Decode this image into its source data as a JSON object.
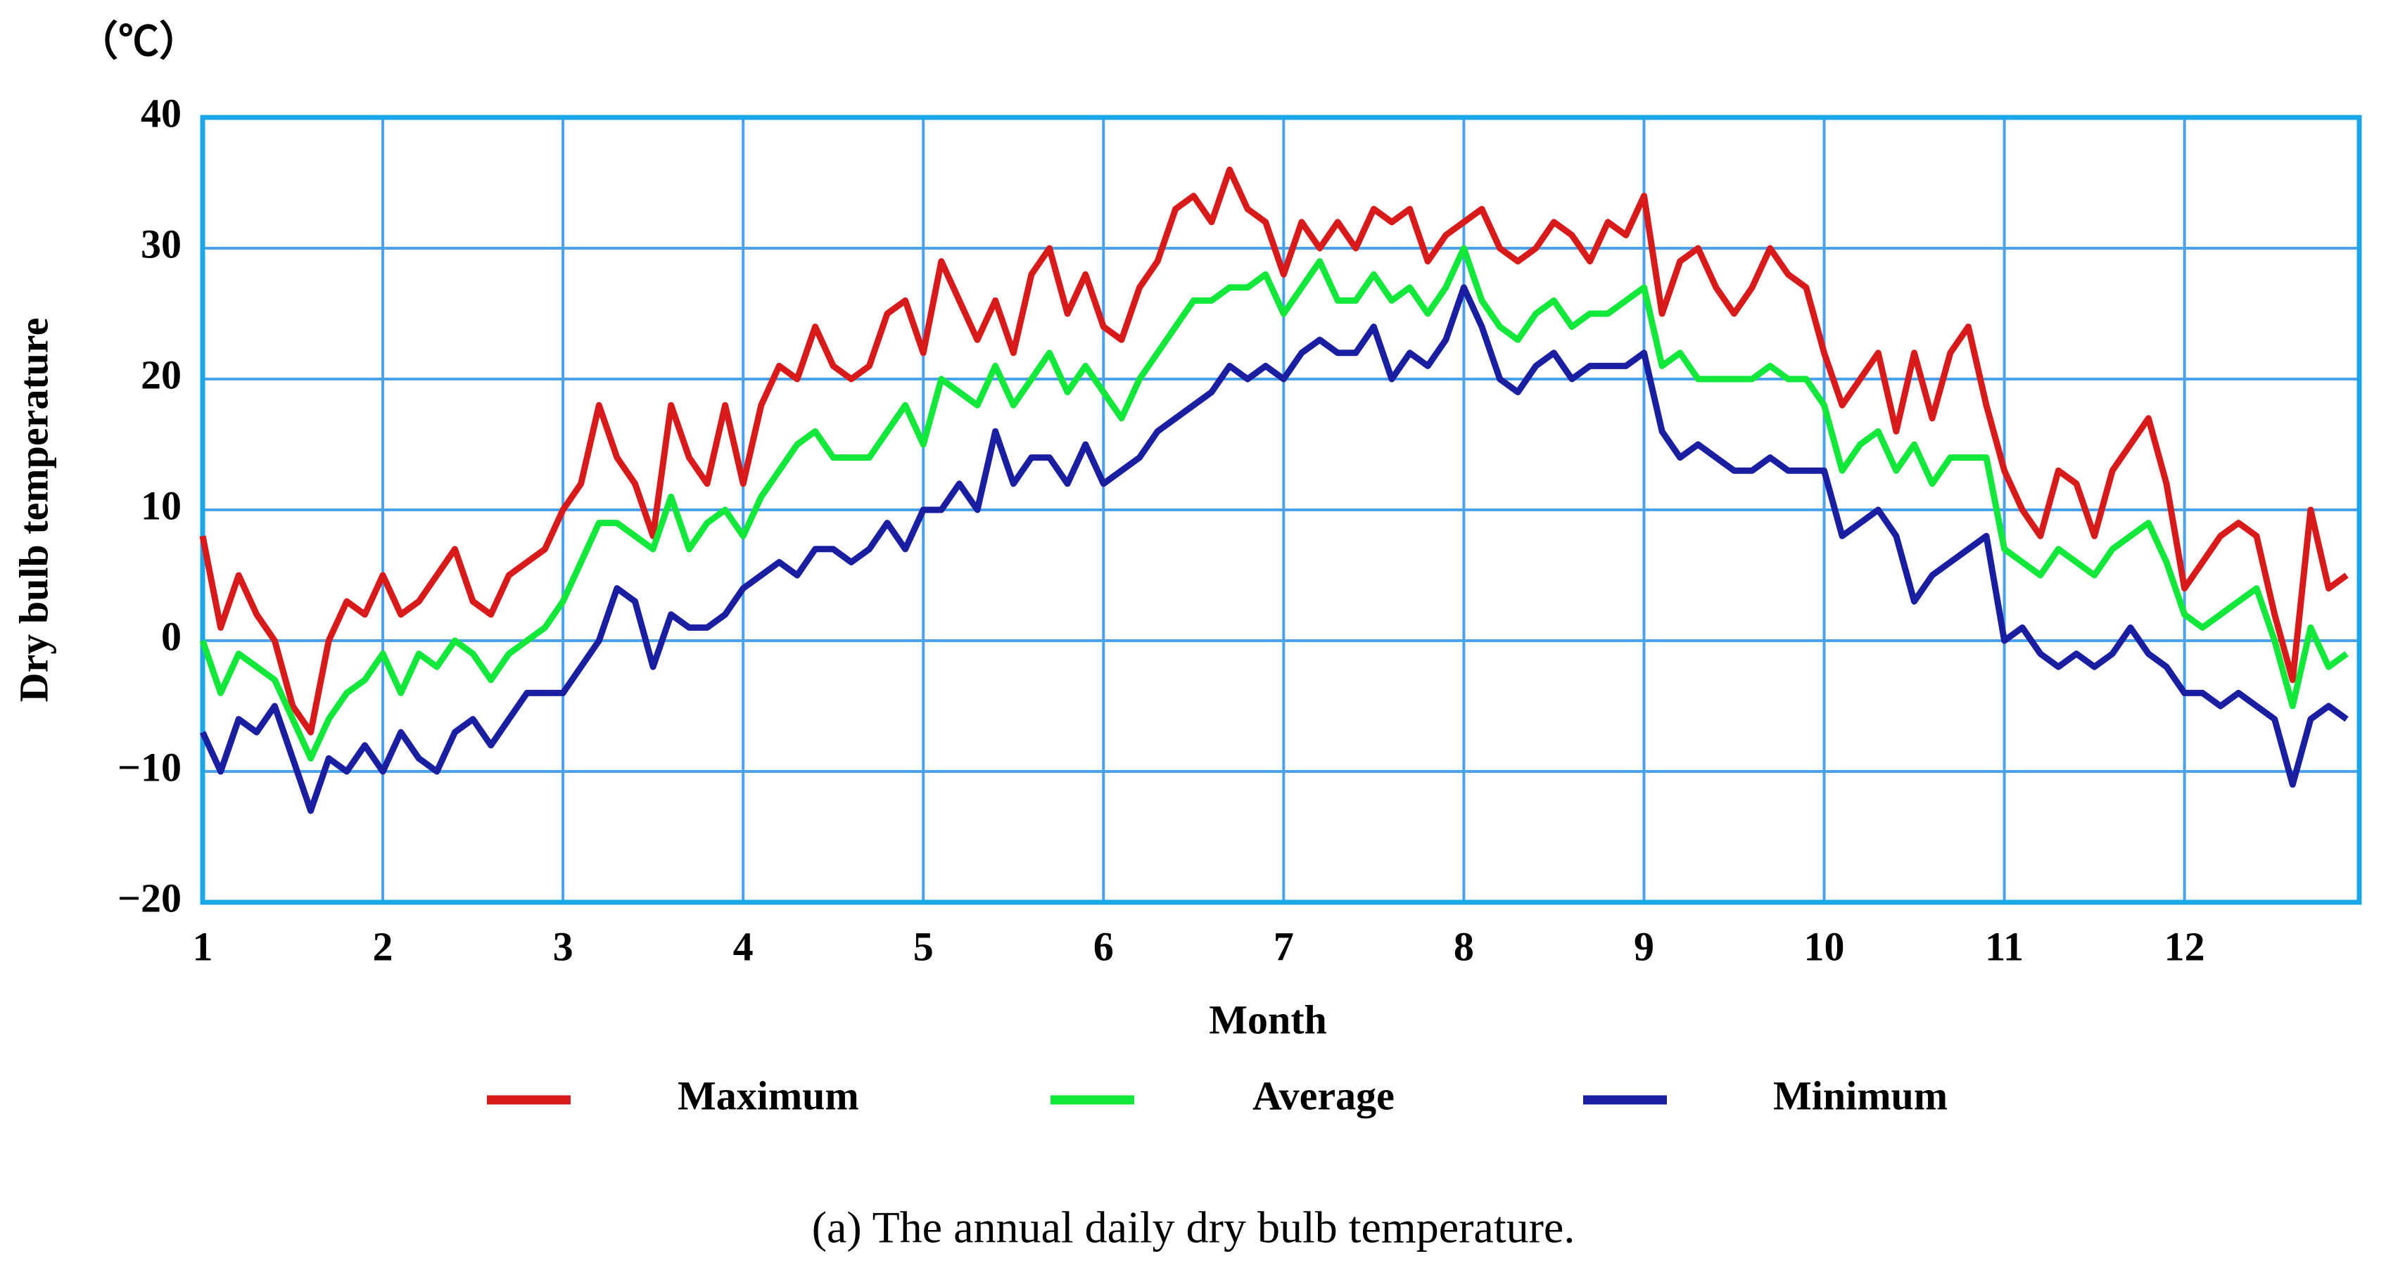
{
  "chart_data": {
    "type": "line",
    "unit_label": "（℃）",
    "y_label": "Dry bulb temperature",
    "x_label": "Month",
    "caption": "(a) The annual daily dry bulb temperature.",
    "xlim": [
      1,
      12.97
    ],
    "xticks": [
      1,
      2,
      3,
      4,
      5,
      6,
      7,
      8,
      9,
      10,
      11,
      12
    ],
    "ylim": [
      -20,
      40
    ],
    "yticks": [
      {
        "value": -20,
        "label": "−20"
      },
      {
        "value": -10,
        "label": "−10"
      },
      0,
      10,
      20,
      30,
      40
    ],
    "grid": true,
    "legend": "bottom",
    "x": [
      1.0,
      1.1,
      1.2,
      1.3,
      1.4,
      1.5,
      1.6,
      1.7,
      1.8,
      1.9,
      2.0,
      2.1,
      2.2,
      2.3,
      2.4,
      2.5,
      2.6,
      2.7,
      2.8,
      2.9,
      3.0,
      3.1,
      3.2,
      3.3,
      3.4,
      3.5,
      3.6,
      3.7,
      3.8,
      3.9,
      4.0,
      4.1,
      4.2,
      4.3,
      4.4,
      4.5,
      4.6,
      4.7,
      4.8,
      4.9,
      5.0,
      5.1,
      5.2,
      5.3,
      5.4,
      5.5,
      5.6,
      5.7,
      5.8,
      5.9,
      6.0,
      6.1,
      6.2,
      6.3,
      6.4,
      6.5,
      6.6,
      6.7,
      6.8,
      6.9,
      7.0,
      7.1,
      7.2,
      7.3,
      7.4,
      7.5,
      7.6,
      7.7,
      7.8,
      7.9,
      8.0,
      8.1,
      8.2,
      8.3,
      8.4,
      8.5,
      8.6,
      8.7,
      8.8,
      8.9,
      9.0,
      9.1,
      9.2,
      9.3,
      9.4,
      9.5,
      9.6,
      9.7,
      9.8,
      9.9,
      10.0,
      10.1,
      10.2,
      10.3,
      10.4,
      10.5,
      10.6,
      10.7,
      10.8,
      10.9,
      11.0,
      11.1,
      11.2,
      11.3,
      11.4,
      11.5,
      11.6,
      11.7,
      11.8,
      11.9,
      12.0,
      12.1,
      12.2,
      12.3,
      12.4,
      12.5,
      12.6,
      12.7,
      12.8,
      12.9
    ],
    "series": [
      {
        "name": "Maximum",
        "color": "#d91a1a",
        "values": [
          8,
          1,
          5,
          2,
          0,
          -5,
          -7,
          0,
          3,
          2,
          5,
          2,
          3,
          5,
          7,
          3,
          2,
          5,
          6,
          7,
          10,
          12,
          18,
          14,
          12,
          8,
          18,
          14,
          12,
          18,
          12,
          18,
          21,
          20,
          24,
          21,
          20,
          21,
          25,
          26,
          22,
          29,
          26,
          23,
          26,
          22,
          28,
          30,
          25,
          28,
          24,
          23,
          27,
          29,
          33,
          34,
          32,
          36,
          33,
          32,
          28,
          32,
          30,
          32,
          30,
          33,
          32,
          33,
          29,
          31,
          32,
          33,
          30,
          29,
          30,
          32,
          31,
          29,
          32,
          31,
          34,
          25,
          29,
          30,
          27,
          25,
          27,
          30,
          28,
          27,
          22,
          18,
          20,
          22,
          16,
          22,
          17,
          22,
          24,
          18,
          13,
          10,
          8,
          13,
          12,
          8,
          13,
          15,
          17,
          12,
          4,
          6,
          8,
          9,
          8,
          2,
          -3,
          10,
          4,
          5
        ]
      },
      {
        "name": "Average",
        "color": "#11e83a",
        "values": [
          0,
          -4,
          -1,
          -2,
          -3,
          -6,
          -9,
          -6,
          -4,
          -3,
          -1,
          -4,
          -1,
          -2,
          0,
          -1,
          -3,
          -1,
          0,
          1,
          3,
          6,
          9,
          9,
          8,
          7,
          11,
          7,
          9,
          10,
          8,
          11,
          13,
          15,
          16,
          14,
          14,
          14,
          16,
          18,
          15,
          20,
          19,
          18,
          21,
          18,
          20,
          22,
          19,
          21,
          19,
          17,
          20,
          22,
          24,
          26,
          26,
          27,
          27,
          28,
          25,
          27,
          29,
          26,
          26,
          28,
          26,
          27,
          25,
          27,
          30,
          26,
          24,
          23,
          25,
          26,
          24,
          25,
          25,
          26,
          27,
          21,
          22,
          20,
          20,
          20,
          20,
          21,
          20,
          20,
          18,
          13,
          15,
          16,
          13,
          15,
          12,
          14,
          14,
          14,
          7,
          6,
          5,
          7,
          6,
          5,
          7,
          8,
          9,
          6,
          2,
          1,
          2,
          3,
          4,
          0,
          -5,
          1,
          -2,
          -1
        ]
      },
      {
        "name": "Minimum",
        "color": "#1a1ea0",
        "values": [
          -7,
          -10,
          -6,
          -7,
          -5,
          -9,
          -13,
          -9,
          -10,
          -8,
          -10,
          -7,
          -9,
          -10,
          -7,
          -6,
          -8,
          -6,
          -4,
          -4,
          -4,
          -2,
          0,
          4,
          3,
          -2,
          2,
          1,
          1,
          2,
          4,
          5,
          6,
          5,
          7,
          7,
          6,
          7,
          9,
          7,
          10,
          10,
          12,
          10,
          16,
          12,
          14,
          14,
          12,
          15,
          12,
          13,
          14,
          16,
          17,
          18,
          19,
          21,
          20,
          21,
          20,
          22,
          23,
          22,
          22,
          24,
          20,
          22,
          21,
          23,
          27,
          24,
          20,
          19,
          21,
          22,
          20,
          21,
          21,
          21,
          22,
          16,
          14,
          15,
          14,
          13,
          13,
          14,
          13,
          13,
          13,
          8,
          9,
          10,
          8,
          3,
          5,
          6,
          7,
          8,
          0,
          1,
          -1,
          -2,
          -1,
          -2,
          -1,
          1,
          -1,
          -2,
          -4,
          -4,
          -5,
          -4,
          -5,
          -6,
          -11,
          -6,
          -5,
          -6
        ]
      }
    ]
  }
}
